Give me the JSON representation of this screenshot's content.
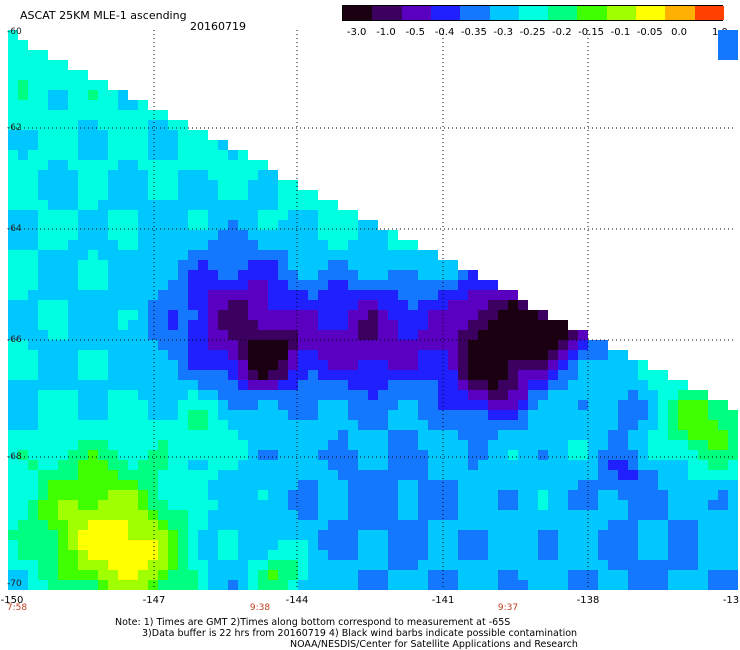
{
  "header": {
    "title": "ASCAT 25KM MLE-1 ascending",
    "date": "20160719"
  },
  "colorbar": {
    "labels": [
      "-3.0",
      "-1.0",
      "-0.5",
      "-0.4",
      "-0.35",
      "-0.3",
      "-0.25",
      "-0.2",
      "-0.15",
      "-0.1",
      "-0.05",
      "0.0"
    ],
    "max_label": "1.0",
    "colors": [
      "#1a0010",
      "#3c0060",
      "#5a00c0",
      "#2020ff",
      "#1478ff",
      "#00c8ff",
      "#00ffe0",
      "#00ff80",
      "#40ff00",
      "#a0ff00",
      "#ffff00",
      "#ffb000",
      "#ff4000"
    ]
  },
  "map": {
    "lat_labels": [
      "-60",
      "-62",
      "-64",
      "-66",
      "-68",
      "-70"
    ],
    "lon_labels": [
      "-150",
      "-147",
      "-144",
      "-141",
      "-138",
      "-13"
    ],
    "time_labels": [
      "7:58",
      "9:38",
      "9:37"
    ],
    "lon_range": [
      -150,
      -135
    ],
    "lat_range": [
      -60,
      -70
    ]
  },
  "footer": {
    "note_line1": "Note: 1) Times are GMT 2)Times along bottom correspond to measurement at -65S",
    "note_line2": "3)Data buffer is 22 hrs from 20160719 4) Black wind barbs indicate possible contamination",
    "credit": "NOAA/NESDIS/Center for Satellite Applications and Research"
  }
}
